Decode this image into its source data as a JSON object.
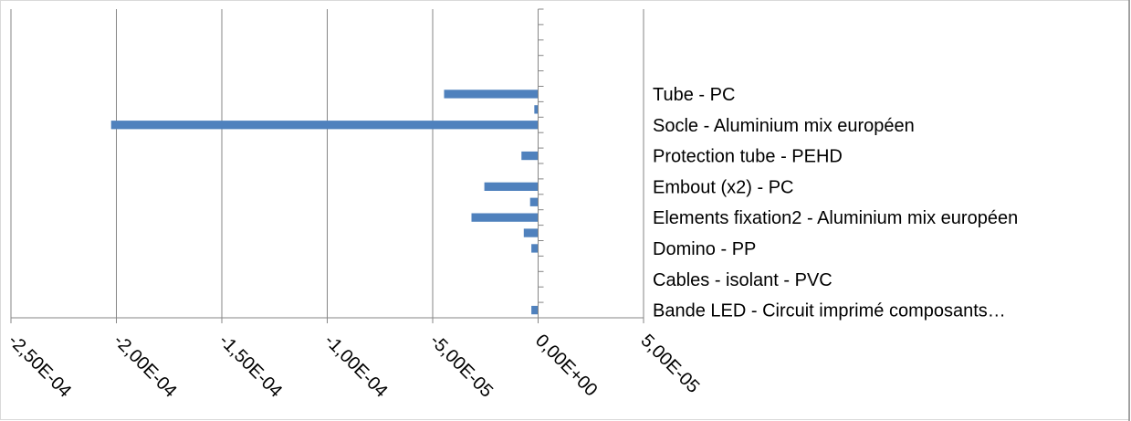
{
  "chart_data": {
    "type": "bar",
    "orientation": "horizontal",
    "title": "",
    "xlabel": "",
    "ylabel": "",
    "xlim": [
      -0.00025,
      5e-05
    ],
    "x_ticks": [
      -0.00025,
      -0.0002,
      -0.00015,
      -0.0001,
      -5e-05,
      0,
      5e-05
    ],
    "x_tick_labels": [
      "-2,50E-04",
      "-2,00E-04",
      "-1,50E-04",
      "-1,00E-04",
      "-5,00E-05",
      "0,00E+00",
      "5,00E-05"
    ],
    "grid": "vertical",
    "color": "#4F81BD",
    "categories_top_to_bottom": [
      "",
      "",
      "",
      "",
      "",
      "Tube - PC",
      "",
      "Socle - Aluminium mix européen",
      "",
      "Protection tube - PEHD",
      "",
      "Embout (x2) - PC",
      "",
      "Elements fixation2 - Aluminium mix européen",
      "",
      "Domino - PP",
      "",
      "Cables - isolant - PVC",
      "",
      "Bande LED - Circuit imprimé composants…"
    ],
    "values_top_to_bottom": [
      0,
      0,
      0,
      0,
      0,
      -4.46e-05,
      -1.8e-06,
      -0.0002025,
      0,
      -7.9e-06,
      0,
      -2.55e-05,
      -3.8e-06,
      -3.16e-05,
      -6.8e-06,
      -3.2e-06,
      0,
      0,
      0,
      -3.2e-06
    ]
  }
}
